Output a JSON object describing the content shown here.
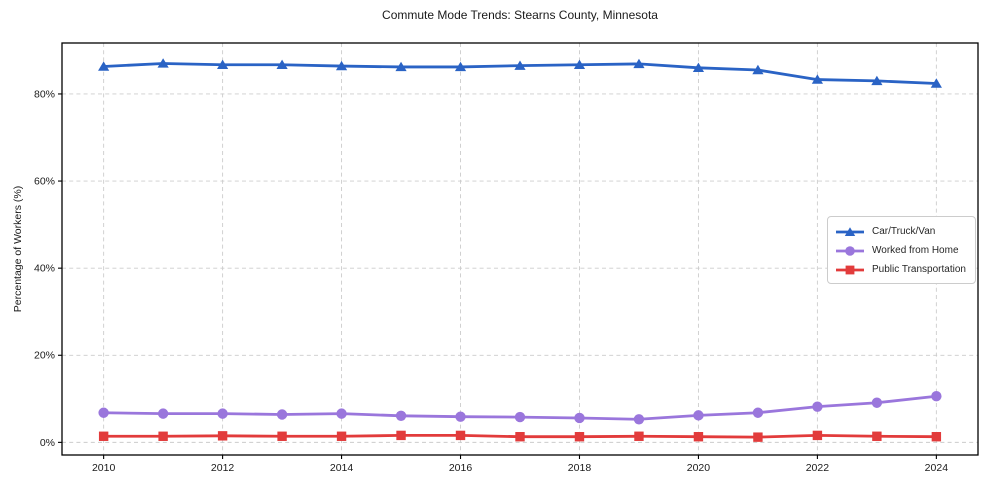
{
  "title": "Commute Mode Trends: Stearns County, Minnesota",
  "chart_data": {
    "type": "line",
    "title": "Commute Mode Trends: Stearns County, Minnesota",
    "xlabel": "",
    "ylabel": "Percentage of Workers (%)",
    "x": [
      2010,
      2011,
      2012,
      2013,
      2014,
      2015,
      2016,
      2017,
      2018,
      2019,
      2020,
      2021,
      2022,
      2023,
      2024
    ],
    "series": [
      {
        "name": "Car/Truck/Van",
        "color": "#2a63c5",
        "marker": "triangle",
        "values": [
          86.3,
          87.0,
          86.7,
          86.7,
          86.4,
          86.2,
          86.2,
          86.5,
          86.7,
          86.9,
          86.0,
          85.5,
          83.3,
          83.0,
          82.4
        ]
      },
      {
        "name": "Worked from Home",
        "color": "#9a76dc",
        "marker": "circle",
        "values": [
          6.8,
          6.6,
          6.6,
          6.4,
          6.6,
          6.1,
          5.9,
          5.8,
          5.6,
          5.3,
          6.2,
          6.8,
          8.2,
          9.1,
          10.6
        ]
      },
      {
        "name": "Public Transportation",
        "color": "#e23b3b",
        "marker": "square",
        "values": [
          1.4,
          1.4,
          1.5,
          1.4,
          1.4,
          1.6,
          1.6,
          1.3,
          1.3,
          1.4,
          1.3,
          1.2,
          1.6,
          1.4,
          1.3
        ]
      }
    ],
    "xticks": [
      2010,
      2012,
      2014,
      2016,
      2018,
      2020,
      2022,
      2024
    ],
    "yticks": [
      0,
      20,
      40,
      60,
      80
    ],
    "ytick_suffix": "%",
    "xlim": [
      2009.3,
      2024.7
    ],
    "ylim": [
      -2.9,
      91.7
    ],
    "grid": true,
    "grid_color": "#cccccc",
    "axis_color": "#000000",
    "text_color": "#1a1a1a",
    "legend_position": "center-right"
  }
}
